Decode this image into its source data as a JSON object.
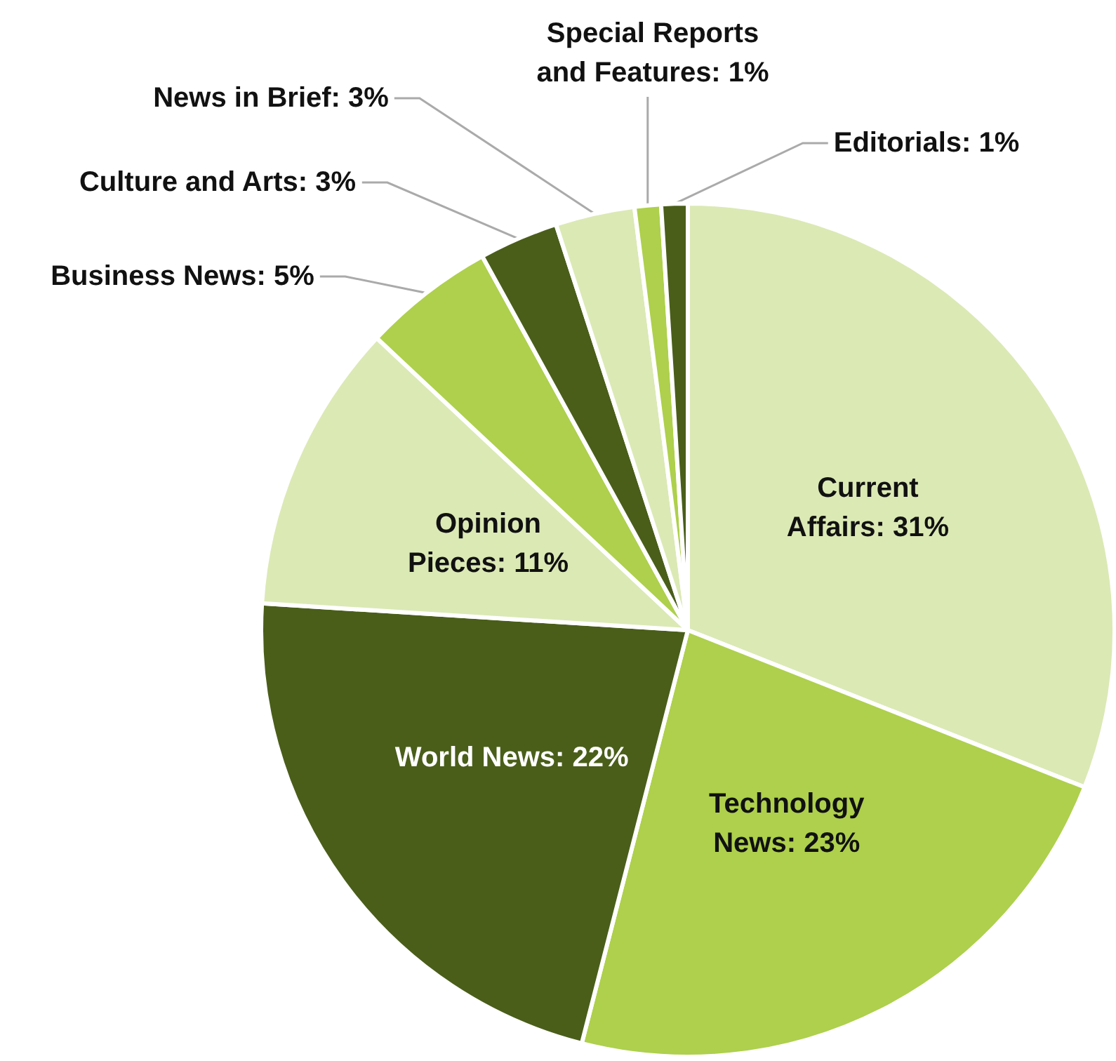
{
  "chart_data": {
    "type": "pie",
    "categories": [
      "Current Affairs",
      "Technology News",
      "World News",
      "Opinion Pieces",
      "Business News",
      "Culture and Arts",
      "News in Brief",
      "Special Reports and Features",
      "Editorials"
    ],
    "values": [
      31,
      23,
      22,
      11,
      5,
      3,
      3,
      1,
      1
    ],
    "value_labels": [
      "31%",
      "23%",
      "22%",
      "11%",
      "5%",
      "3%",
      "3%",
      "1%",
      "1%"
    ],
    "colors": [
      "#dbe9b5",
      "#aed04c",
      "#4a5e1a",
      "#dbe9b5",
      "#aed04c",
      "#4a5e1a",
      "#dbe9b5",
      "#aed04c",
      "#4a5e1a"
    ]
  }
}
